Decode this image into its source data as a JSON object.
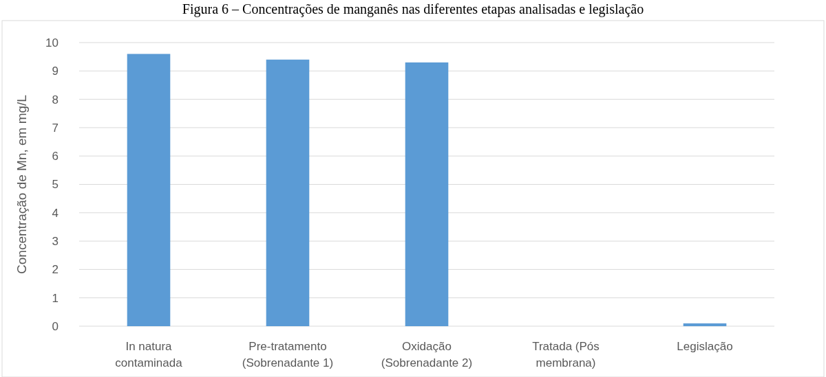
{
  "chart_data": {
    "type": "bar",
    "title": "Figura 6 – Concentrações de manganês nas diferentes etapas analisadas e legislação",
    "ylabel": "Concentração de Mn, em mg/L",
    "categories": [
      "In natura contaminada",
      "Pre-tratamento (Sobrenadante 1)",
      "Oxidação (Sobrenadante 2)",
      "Tratada (Pós membrana)",
      "Legislação"
    ],
    "values": [
      9.6,
      9.4,
      9.3,
      0,
      0.1
    ],
    "color": "#5b9bd5",
    "ylim": [
      0,
      10
    ],
    "yticks": [
      0,
      1,
      2,
      3,
      4,
      5,
      6,
      7,
      8,
      9,
      10
    ],
    "grid": "y"
  }
}
